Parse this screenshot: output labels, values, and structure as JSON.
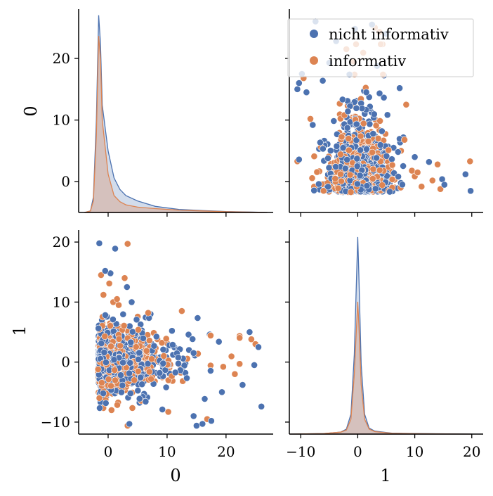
{
  "chart_data": {
    "type": "pairplot",
    "variables": [
      "0",
      "1"
    ],
    "hue_order": [
      "nicht informativ",
      "informativ"
    ],
    "colors": {
      "nicht informativ": "#4c72b0",
      "informativ": "#dd8452",
      "overlap": "#c9c2ba"
    },
    "legend": {
      "placement": "top-right",
      "entries": [
        "nicht informativ",
        "informativ"
      ]
    },
    "grid": false,
    "var_ranges": {
      "0": [
        -5,
        28
      ],
      "1": [
        -12,
        22
      ]
    },
    "ticks": {
      "0": [
        {
          "v": 0,
          "label": "0"
        },
        {
          "v": 10,
          "label": "10"
        },
        {
          "v": 20,
          "label": "20"
        }
      ],
      "1": [
        {
          "v": -10,
          "label": "−10"
        },
        {
          "v": 0,
          "label": "0"
        },
        {
          "v": 10,
          "label": "10"
        },
        {
          "v": 20,
          "label": "20"
        }
      ]
    },
    "diag_ranges": {
      "0": [
        0,
        26.5
      ],
      "1": [
        0,
        20.5
      ]
    },
    "axis_labels": {
      "row_0": "0",
      "row_1": "1",
      "col_0": "0",
      "col_1": "1"
    },
    "kde": {
      "0": {
        "nicht informativ": [
          [
            -4,
            0
          ],
          [
            -3,
            0.2
          ],
          [
            -2.5,
            2
          ],
          [
            -2,
            12
          ],
          [
            -1.6,
            25.7
          ],
          [
            -1.3,
            22
          ],
          [
            -1,
            14
          ],
          [
            0,
            8
          ],
          [
            1,
            4.5
          ],
          [
            2,
            3
          ],
          [
            3,
            2.2
          ],
          [
            5,
            1.5
          ],
          [
            8,
            0.8
          ],
          [
            12,
            0.4
          ],
          [
            16,
            0.25
          ],
          [
            20,
            0.12
          ],
          [
            25,
            0.05
          ],
          [
            27,
            0
          ]
        ],
        "informativ": [
          [
            -4,
            0
          ],
          [
            -3,
            0.2
          ],
          [
            -2.5,
            1.5
          ],
          [
            -2,
            10
          ],
          [
            -1.6,
            23
          ],
          [
            -1.3,
            20
          ],
          [
            -1,
            12
          ],
          [
            0,
            5
          ],
          [
            1,
            2.2
          ],
          [
            2,
            1.4
          ],
          [
            3,
            1
          ],
          [
            5,
            0.7
          ],
          [
            8,
            0.5
          ],
          [
            12,
            0.3
          ],
          [
            16,
            0.2
          ],
          [
            20,
            0.1
          ],
          [
            25,
            0.04
          ],
          [
            27,
            0
          ]
        ]
      },
      "1": {
        "nicht informativ": [
          [
            -12,
            0
          ],
          [
            -6,
            0.05
          ],
          [
            -3,
            0.2
          ],
          [
            -2,
            0.5
          ],
          [
            -1.2,
            2
          ],
          [
            -0.6,
            8
          ],
          [
            -0.2,
            16
          ],
          [
            0,
            19.8
          ],
          [
            0.2,
            16
          ],
          [
            0.6,
            7
          ],
          [
            1.2,
            2
          ],
          [
            2,
            0.6
          ],
          [
            3,
            0.3
          ],
          [
            6,
            0.1
          ],
          [
            10,
            0.05
          ],
          [
            20,
            0
          ]
        ],
        "informativ": [
          [
            -12,
            0
          ],
          [
            -6,
            0.05
          ],
          [
            -3,
            0.2
          ],
          [
            -2,
            0.4
          ],
          [
            -1.2,
            1.5
          ],
          [
            -0.6,
            6
          ],
          [
            -0.2,
            11
          ],
          [
            0,
            13.3
          ],
          [
            0.2,
            11
          ],
          [
            0.6,
            5
          ],
          [
            1.2,
            1.5
          ],
          [
            2,
            0.5
          ],
          [
            3,
            0.25
          ],
          [
            6,
            0.08
          ],
          [
            10,
            0.04
          ],
          [
            20,
            0
          ]
        ]
      }
    },
    "scatter": {
      "x_var": "0",
      "y_var": "1",
      "seed": 7,
      "counts": {
        "nicht informativ": 900,
        "informativ": 620
      },
      "outliers": [
        {
          "hue": "nicht informativ",
          "x": -1.5,
          "y": 19.8
        },
        {
          "hue": "informativ",
          "x": 3.3,
          "y": 19.7
        },
        {
          "hue": "nicht informativ",
          "x": 1.2,
          "y": 18.9
        },
        {
          "hue": "nicht informativ",
          "x": -0.5,
          "y": 15.2
        },
        {
          "hue": "informativ",
          "x": -1.2,
          "y": 14.5
        },
        {
          "hue": "nicht informativ",
          "x": 0.4,
          "y": 14.8
        },
        {
          "hue": "informativ",
          "x": 2.8,
          "y": 14.0
        },
        {
          "hue": "informativ",
          "x": 0.2,
          "y": 13.1
        },
        {
          "hue": "nicht informativ",
          "x": 3.2,
          "y": 12.5
        },
        {
          "hue": "informativ",
          "x": -0.8,
          "y": 11.2
        },
        {
          "hue": "nicht informativ",
          "x": 3.6,
          "y": -10.3
        },
        {
          "hue": "informativ",
          "x": 3.3,
          "y": -10.6
        },
        {
          "hue": "nicht informativ",
          "x": 15.0,
          "y": -10.6
        },
        {
          "hue": "nicht informativ",
          "x": 16.0,
          "y": -10.3
        },
        {
          "hue": "nicht informativ",
          "x": 17.5,
          "y": -9.8
        },
        {
          "hue": "informativ",
          "x": 16.8,
          "y": -9.5
        },
        {
          "hue": "nicht informativ",
          "x": 14.5,
          "y": -9.0
        },
        {
          "hue": "informativ",
          "x": 10.2,
          "y": -8.3
        },
        {
          "hue": "nicht informativ",
          "x": 9.2,
          "y": -7.9
        },
        {
          "hue": "nicht informativ",
          "x": 26.0,
          "y": -7.4
        },
        {
          "hue": "nicht informativ",
          "x": 24.0,
          "y": 5.0
        },
        {
          "hue": "informativ",
          "x": 24.3,
          "y": 3.8
        },
        {
          "hue": "informativ",
          "x": 25.0,
          "y": 3.0
        },
        {
          "hue": "nicht informativ",
          "x": 25.5,
          "y": 2.5
        },
        {
          "hue": "nicht informativ",
          "x": 24.8,
          "y": -0.5
        },
        {
          "hue": "nicht informativ",
          "x": 22.8,
          "y": -3.8
        },
        {
          "hue": "informativ",
          "x": 21.5,
          "y": -2.0
        },
        {
          "hue": "informativ",
          "x": 12.5,
          "y": 8.5
        },
        {
          "hue": "nicht informativ",
          "x": 7.2,
          "y": 8.0
        },
        {
          "hue": "informativ",
          "x": 6.8,
          "y": 8.2
        },
        {
          "hue": "nicht informativ",
          "x": 4.0,
          "y": 10.0
        },
        {
          "hue": "informativ",
          "x": 1.5,
          "y": 10.5
        }
      ]
    }
  }
}
